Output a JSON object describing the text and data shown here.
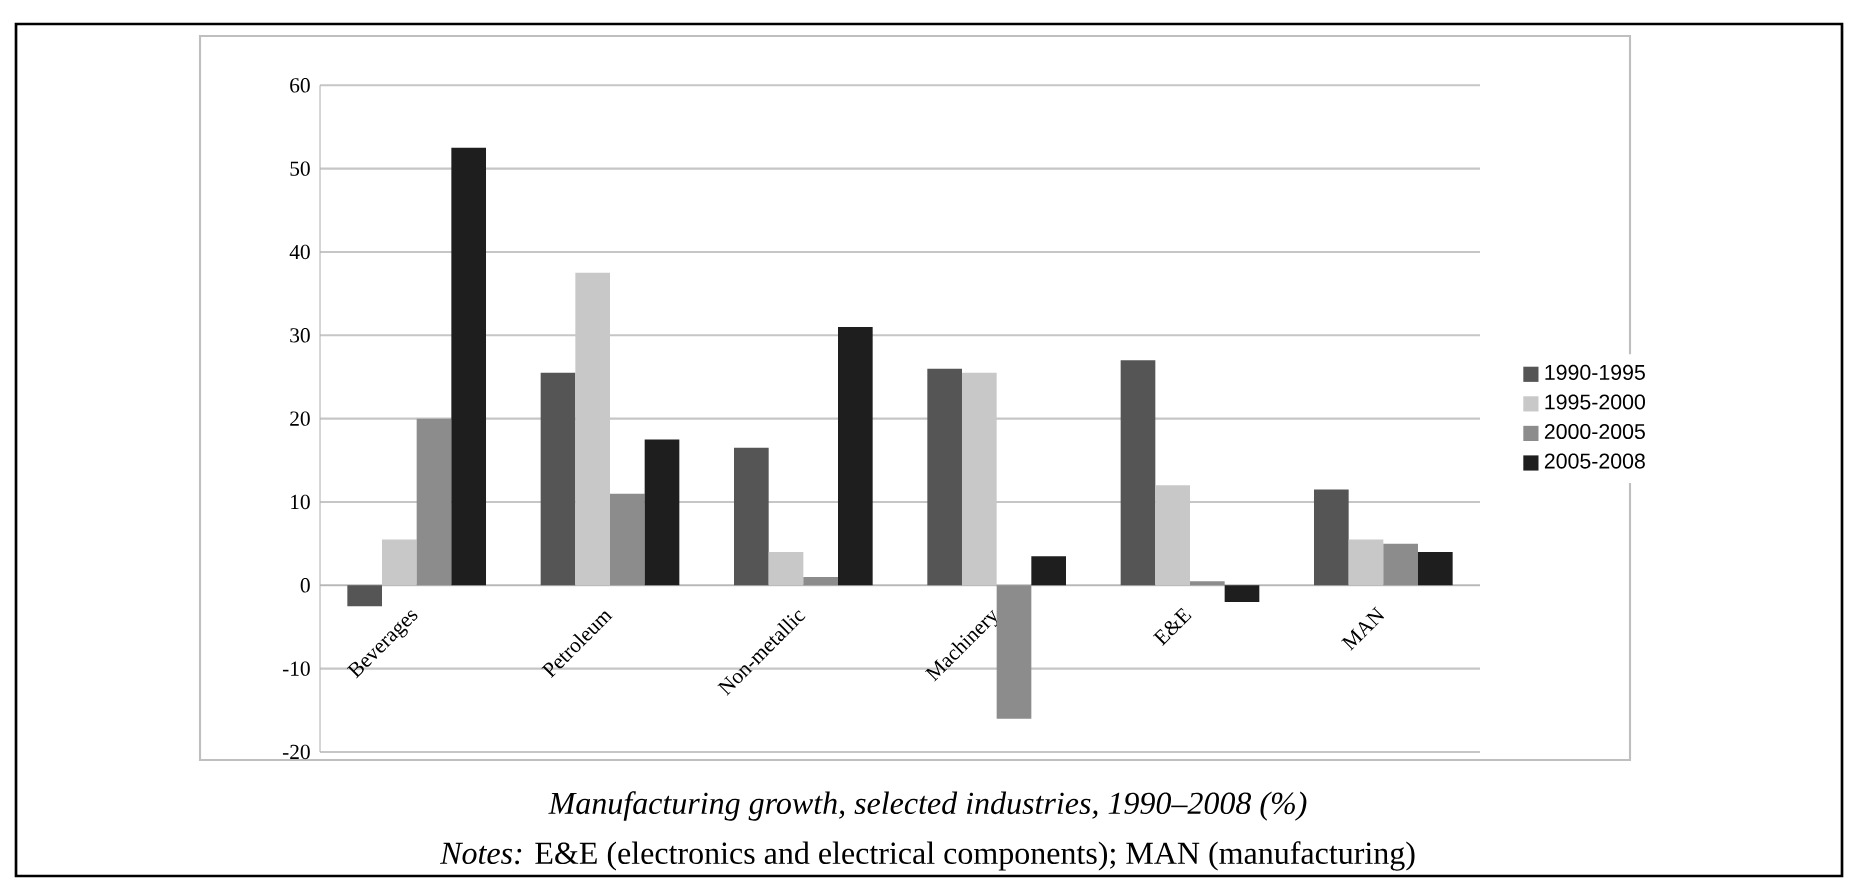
{
  "chart_data": {
    "type": "bar",
    "categories": [
      "Beverages",
      "Petroleum",
      "Non-metallic",
      "Machinery",
      "E&E",
      "MAN"
    ],
    "series": [
      {
        "name": "1990-1995",
        "color": "#555555",
        "values": [
          -2.5,
          25.5,
          16.5,
          26,
          27,
          11.5
        ]
      },
      {
        "name": "1995-2000",
        "color": "#c8c8c8",
        "values": [
          5.5,
          37.5,
          4,
          25.5,
          12,
          5.5
        ]
      },
      {
        "name": "2000-2005",
        "color": "#8c8c8c",
        "values": [
          20,
          11,
          1,
          -16,
          0.5,
          5
        ]
      },
      {
        "name": "2005-2008",
        "color": "#1e1e1e",
        "values": [
          52.5,
          17.5,
          31,
          3.5,
          -2,
          4
        ]
      }
    ],
    "ylim": [
      -20,
      60
    ],
    "yticks": [
      -20,
      -10,
      0,
      10,
      20,
      30,
      40,
      50,
      60
    ],
    "grid": "y",
    "legend": "right",
    "annotations": [
      "Manufacturing growth, selected industries, 1990–2008 (%)",
      "*Notes:* E&E (electronics and electrical components); MAN (manufacturing)"
    ]
  }
}
